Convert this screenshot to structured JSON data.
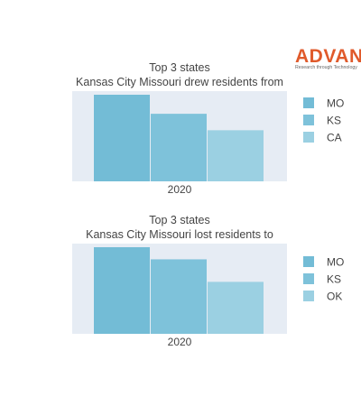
{
  "logo": {
    "name": "ADVAN",
    "tagline": "Research through Technology",
    "color": "#e05a2b"
  },
  "chart_data": [
    {
      "type": "bar",
      "title_line1": "Top 3 states",
      "title_line2": "Kansas City Missouri drew residents from",
      "categories": [
        "2020"
      ],
      "series": [
        {
          "name": "MO",
          "values": [
            1.0
          ],
          "color": "#73bcd6"
        },
        {
          "name": "KS",
          "values": [
            0.78
          ],
          "color": "#7ec2da"
        },
        {
          "name": "CA",
          "values": [
            0.59
          ],
          "color": "#9bd0e2"
        }
      ],
      "ylim": [
        0,
        1.0
      ],
      "grid": false,
      "plot_background": "#e6ecf4",
      "legend_position": "right"
    },
    {
      "type": "bar",
      "title_line1": "Top 3 states",
      "title_line2": "Kansas City Missouri lost residents to",
      "categories": [
        "2020"
      ],
      "series": [
        {
          "name": "MO",
          "values": [
            1.0
          ],
          "color": "#73bcd6"
        },
        {
          "name": "KS",
          "values": [
            0.86
          ],
          "color": "#7ec2da"
        },
        {
          "name": "OK",
          "values": [
            0.6
          ],
          "color": "#9bd0e2"
        }
      ],
      "ylim": [
        0,
        1.0
      ],
      "grid": false,
      "plot_background": "#e6ecf4",
      "legend_position": "right"
    }
  ]
}
